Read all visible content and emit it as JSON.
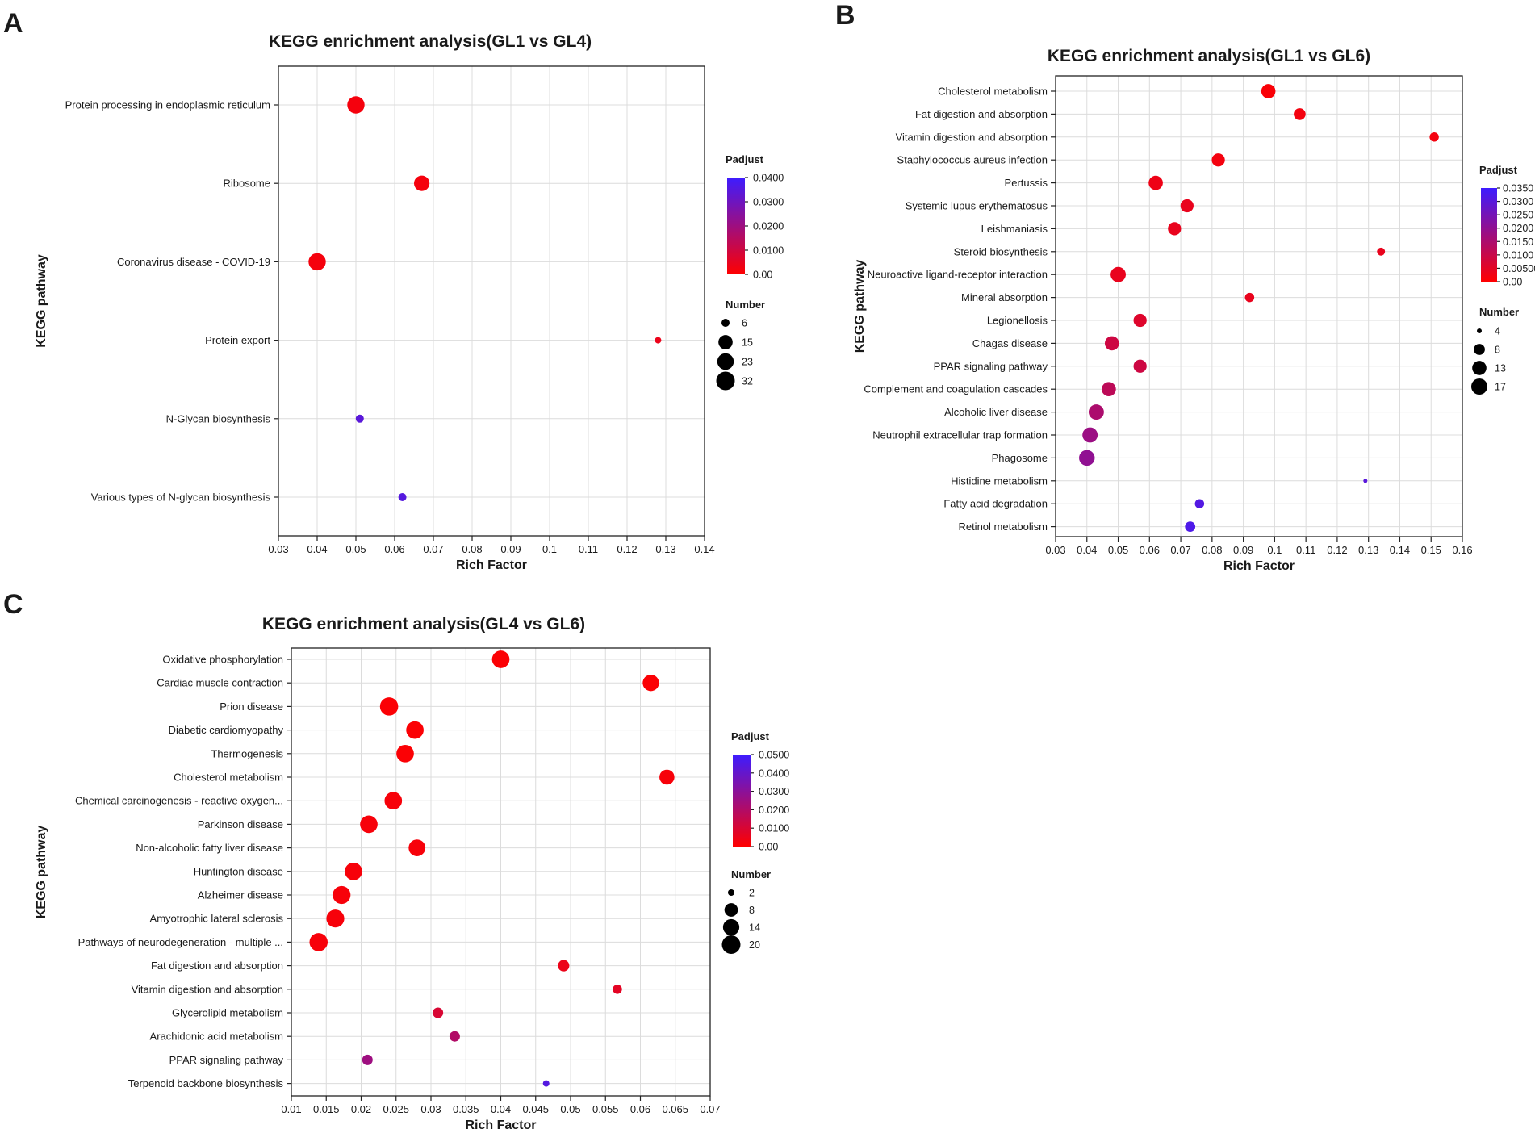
{
  "chart_data": [
    {
      "panel": "A",
      "type": "scatter",
      "title": "KEGG enrichment analysis(GL1 vs GL4)",
      "xlabel": "Rich Factor",
      "ylabel": "KEGG pathway",
      "xlim": [
        0.03,
        0.14
      ],
      "xticks": [
        "0.03",
        "0.04",
        "0.05",
        "0.06",
        "0.07",
        "0.08",
        "0.09",
        "0.1",
        "0.11",
        "0.12",
        "0.13",
        "0.14"
      ],
      "grid": true,
      "color_legend": {
        "title": "Padjust",
        "labels": [
          "0.0400",
          "0.0300",
          "0.0200",
          "0.0100",
          "0.00"
        ],
        "max": 0.04,
        "low_color": "#ff0000",
        "high_color": "#3d1cff"
      },
      "size_legend": {
        "title": "Number",
        "values": [
          6,
          15,
          23,
          32
        ]
      },
      "points": [
        {
          "pathway": "Protein processing in endoplasmic reticulum",
          "rich_factor": 0.05,
          "number": 26,
          "padjust": 0.002
        },
        {
          "pathway": "Ribosome",
          "rich_factor": 0.067,
          "number": 19,
          "padjust": 0.002
        },
        {
          "pathway": "Coronavirus disease - COVID-19",
          "rich_factor": 0.04,
          "number": 26,
          "padjust": 0.002
        },
        {
          "pathway": "Protein export",
          "rich_factor": 0.128,
          "number": 5,
          "padjust": 0.004
        },
        {
          "pathway": "N-Glycan biosynthesis",
          "rich_factor": 0.051,
          "number": 6,
          "padjust": 0.034
        },
        {
          "pathway": "Various types of N-glycan biosynthesis",
          "rich_factor": 0.062,
          "number": 6,
          "padjust": 0.035
        }
      ]
    },
    {
      "panel": "B",
      "type": "scatter",
      "title": "KEGG enrichment analysis(GL1 vs GL6)",
      "xlabel": "Rich Factor",
      "ylabel": "KEGG pathway",
      "xlim": [
        0.03,
        0.16
      ],
      "xticks": [
        "0.03",
        "0.04",
        "0.05",
        "0.06",
        "0.07",
        "0.08",
        "0.09",
        "0.1",
        "0.11",
        "0.12",
        "0.13",
        "0.14",
        "0.15",
        "0.16"
      ],
      "grid": true,
      "color_legend": {
        "title": "Padjust",
        "labels": [
          "0.0350",
          "0.0300",
          "0.0250",
          "0.0200",
          "0.0150",
          "0.0100",
          "0.00500",
          "0.00"
        ],
        "max": 0.035,
        "low_color": "#ff0000",
        "high_color": "#3d1cff"
      },
      "size_legend": {
        "title": "Number",
        "values": [
          4,
          8,
          13,
          17
        ]
      },
      "points": [
        {
          "pathway": "Cholesterol metabolism",
          "rich_factor": 0.098,
          "number": 13,
          "padjust": 0.001
        },
        {
          "pathway": "Fat digestion and absorption",
          "rich_factor": 0.108,
          "number": 9,
          "padjust": 0.002
        },
        {
          "pathway": "Vitamin digestion and absorption",
          "rich_factor": 0.151,
          "number": 6,
          "padjust": 0.002
        },
        {
          "pathway": "Staphylococcus aureus infection",
          "rich_factor": 0.082,
          "number": 11,
          "padjust": 0.002
        },
        {
          "pathway": "Pertussis",
          "rich_factor": 0.062,
          "number": 13,
          "padjust": 0.003
        },
        {
          "pathway": "Systemic lupus erythematosus",
          "rich_factor": 0.072,
          "number": 11,
          "padjust": 0.004
        },
        {
          "pathway": "Leishmaniasis",
          "rich_factor": 0.068,
          "number": 11,
          "padjust": 0.004
        },
        {
          "pathway": "Steroid biosynthesis",
          "rich_factor": 0.134,
          "number": 5,
          "padjust": 0.004
        },
        {
          "pathway": "Neuroactive ligand-receptor interaction",
          "rich_factor": 0.05,
          "number": 15,
          "padjust": 0.004
        },
        {
          "pathway": "Mineral absorption",
          "rich_factor": 0.092,
          "number": 6,
          "padjust": 0.004
        },
        {
          "pathway": "Legionellosis",
          "rich_factor": 0.057,
          "number": 11,
          "padjust": 0.006
        },
        {
          "pathway": "Chagas disease",
          "rich_factor": 0.048,
          "number": 13,
          "padjust": 0.009
        },
        {
          "pathway": "PPAR signaling pathway",
          "rich_factor": 0.057,
          "number": 11,
          "padjust": 0.009
        },
        {
          "pathway": "Complement and coagulation cascades",
          "rich_factor": 0.047,
          "number": 13,
          "padjust": 0.012
        },
        {
          "pathway": "Alcoholic liver disease",
          "rich_factor": 0.043,
          "number": 15,
          "padjust": 0.015
        },
        {
          "pathway": "Neutrophil extracellular trap formation",
          "rich_factor": 0.041,
          "number": 15,
          "padjust": 0.018
        },
        {
          "pathway": "Phagosome",
          "rich_factor": 0.04,
          "number": 16,
          "padjust": 0.02
        },
        {
          "pathway": "Histidine metabolism",
          "rich_factor": 0.129,
          "number": 3,
          "padjust": 0.03
        },
        {
          "pathway": "Fatty acid degradation",
          "rich_factor": 0.076,
          "number": 6,
          "padjust": 0.031
        },
        {
          "pathway": "Retinol metabolism",
          "rich_factor": 0.073,
          "number": 7,
          "padjust": 0.032
        }
      ]
    },
    {
      "panel": "C",
      "type": "scatter",
      "title": "KEGG enrichment analysis(GL4 vs GL6)",
      "xlabel": "Rich Factor",
      "ylabel": "KEGG pathway",
      "xlim": [
        0.01,
        0.07
      ],
      "xticks": [
        "0.01",
        "0.015",
        "0.02",
        "0.025",
        "0.03",
        "0.035",
        "0.04",
        "0.045",
        "0.05",
        "0.055",
        "0.06",
        "0.065",
        "0.07"
      ],
      "grid": true,
      "color_legend": {
        "title": "Padjust",
        "labels": [
          "0.0500",
          "0.0400",
          "0.0300",
          "0.0200",
          "0.0100",
          "0.00"
        ],
        "max": 0.05,
        "low_color": "#ff0000",
        "high_color": "#3d1cff"
      },
      "size_legend": {
        "title": "Number",
        "values": [
          2,
          8,
          14,
          20
        ]
      },
      "points": [
        {
          "pathway": "Oxidative phosphorylation",
          "rich_factor": 0.04,
          "number": 17,
          "padjust": 0.001
        },
        {
          "pathway": "Cardiac muscle contraction",
          "rich_factor": 0.0615,
          "number": 14,
          "padjust": 0.001
        },
        {
          "pathway": "Prion disease",
          "rich_factor": 0.024,
          "number": 19,
          "padjust": 0.001
        },
        {
          "pathway": "Diabetic cardiomyopathy",
          "rich_factor": 0.0277,
          "number": 17,
          "padjust": 0.001
        },
        {
          "pathway": "Thermogenesis",
          "rich_factor": 0.0263,
          "number": 17,
          "padjust": 0.001
        },
        {
          "pathway": "Cholesterol metabolism",
          "rich_factor": 0.0638,
          "number": 11,
          "padjust": 0.002
        },
        {
          "pathway": "Chemical carcinogenesis - reactive oxygen...",
          "rich_factor": 0.0246,
          "number": 17,
          "padjust": 0.002
        },
        {
          "pathway": "Parkinson disease",
          "rich_factor": 0.0211,
          "number": 17,
          "padjust": 0.002
        },
        {
          "pathway": "Non-alcoholic fatty liver disease",
          "rich_factor": 0.028,
          "number": 15,
          "padjust": 0.002
        },
        {
          "pathway": "Huntington disease",
          "rich_factor": 0.0189,
          "number": 17,
          "padjust": 0.002
        },
        {
          "pathway": "Alzheimer disease",
          "rich_factor": 0.0172,
          "number": 18,
          "padjust": 0.002
        },
        {
          "pathway": "Amyotrophic lateral sclerosis",
          "rich_factor": 0.0163,
          "number": 18,
          "padjust": 0.002
        },
        {
          "pathway": "Pathways of neurodegeneration - multiple ...",
          "rich_factor": 0.0139,
          "number": 19,
          "padjust": 0.002
        },
        {
          "pathway": "Fat digestion and absorption",
          "rich_factor": 0.049,
          "number": 5,
          "padjust": 0.005
        },
        {
          "pathway": "Vitamin digestion and absorption",
          "rich_factor": 0.0567,
          "number": 3,
          "padjust": 0.007
        },
        {
          "pathway": "Glycerolipid metabolism",
          "rich_factor": 0.031,
          "number": 4,
          "padjust": 0.01
        },
        {
          "pathway": "Arachidonic acid metabolism",
          "rich_factor": 0.0334,
          "number": 4,
          "padjust": 0.02
        },
        {
          "pathway": "PPAR signaling pathway",
          "rich_factor": 0.0209,
          "number": 4,
          "padjust": 0.025
        },
        {
          "pathway": "Terpenoid backbone biosynthesis",
          "rich_factor": 0.0465,
          "number": 2,
          "padjust": 0.044
        }
      ]
    }
  ]
}
